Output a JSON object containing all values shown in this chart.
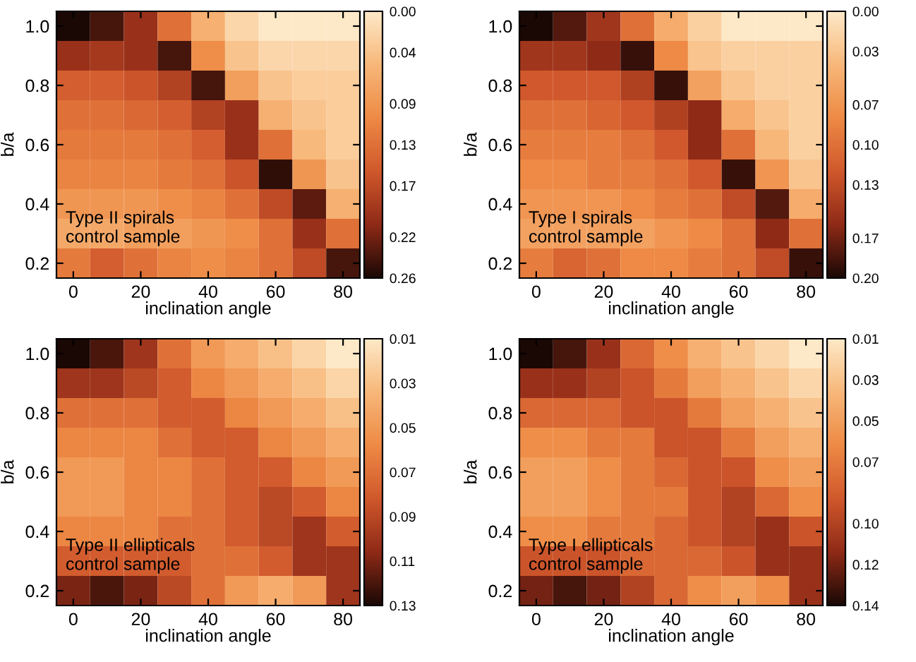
{
  "chart_data": [
    {
      "type": "heatmap",
      "xlabel": "inclination angle",
      "ylabel": "b/a",
      "annotations": [
        "Type II spirals\ncontrol sample"
      ],
      "categories": [
        "0",
        null,
        "20",
        null,
        "40",
        null,
        "60",
        null,
        "80"
      ],
      "y_categories": [
        "1.0",
        null,
        "0.8",
        null,
        "0.6",
        null,
        "0.4",
        null,
        "0.2"
      ],
      "clim": [
        0.0,
        0.26
      ],
      "cticks": [
        {
          "value": 0.0,
          "label": "0.00"
        },
        0.04,
        0.09,
        0.13,
        0.17,
        0.22,
        0.26
      ],
      "cells": [
        [
          0.26,
          0.24,
          0.2,
          0.13,
          0.06,
          0.02,
          0.0,
          0.0,
          0.0
        ],
        [
          0.2,
          0.19,
          0.2,
          0.24,
          0.1,
          0.04,
          0.02,
          0.02,
          0.02
        ],
        [
          0.15,
          0.15,
          0.16,
          0.18,
          0.24,
          0.08,
          0.04,
          0.03,
          0.03
        ],
        [
          0.13,
          0.13,
          0.14,
          0.15,
          0.18,
          0.2,
          0.06,
          0.04,
          0.03
        ],
        [
          0.12,
          0.12,
          0.12,
          0.13,
          0.15,
          0.2,
          0.13,
          0.05,
          0.03
        ],
        [
          0.11,
          0.11,
          0.11,
          0.12,
          0.13,
          0.16,
          0.25,
          0.09,
          0.04
        ],
        [
          0.09,
          0.09,
          0.09,
          0.1,
          0.11,
          0.13,
          0.17,
          0.23,
          0.06
        ],
        [
          0.07,
          0.07,
          0.08,
          0.08,
          0.09,
          0.1,
          0.13,
          0.2,
          0.13
        ],
        [
          0.12,
          0.15,
          0.13,
          0.11,
          0.1,
          0.11,
          0.13,
          0.17,
          0.24
        ]
      ]
    },
    {
      "type": "heatmap",
      "xlabel": "inclination angle",
      "ylabel": "b/a",
      "annotations": [
        "Type I spirals\ncontrol sample"
      ],
      "categories": [
        "0",
        null,
        "20",
        null,
        "40",
        null,
        "60",
        null,
        "80"
      ],
      "y_categories": [
        "1.0",
        null,
        "0.8",
        null,
        "0.6",
        null,
        "0.4",
        null,
        "0.2"
      ],
      "clim": [
        0.0,
        0.2
      ],
      "cticks": [
        {
          "value": 0.0,
          "label": "0.00"
        },
        0.03,
        0.07,
        {
          "value": 0.1,
          "label": "0.10"
        },
        0.13,
        0.17,
        {
          "value": 0.2,
          "label": "0.20"
        }
      ],
      "cells": [
        [
          0.2,
          0.18,
          0.15,
          0.1,
          0.05,
          0.02,
          0.0,
          0.0,
          0.0
        ],
        [
          0.15,
          0.15,
          0.16,
          0.19,
          0.08,
          0.03,
          0.02,
          0.02,
          0.02
        ],
        [
          0.12,
          0.12,
          0.12,
          0.14,
          0.19,
          0.06,
          0.03,
          0.02,
          0.02
        ],
        [
          0.1,
          0.1,
          0.11,
          0.12,
          0.14,
          0.16,
          0.05,
          0.03,
          0.02
        ],
        [
          0.09,
          0.09,
          0.09,
          0.1,
          0.12,
          0.16,
          0.1,
          0.04,
          0.02
        ],
        [
          0.08,
          0.08,
          0.09,
          0.09,
          0.1,
          0.12,
          0.19,
          0.07,
          0.03
        ],
        [
          0.07,
          0.07,
          0.07,
          0.08,
          0.09,
          0.1,
          0.13,
          0.18,
          0.05
        ],
        [
          0.06,
          0.06,
          0.06,
          0.06,
          0.07,
          0.08,
          0.1,
          0.16,
          0.1
        ],
        [
          0.09,
          0.11,
          0.1,
          0.08,
          0.08,
          0.09,
          0.1,
          0.13,
          0.19
        ]
      ]
    },
    {
      "type": "heatmap",
      "xlabel": "inclination angle",
      "ylabel": "b/a",
      "annotations": [
        "Type II ellipticals\ncontrol sample"
      ],
      "categories": [
        "0",
        null,
        "20",
        null,
        "40",
        null,
        "60",
        null,
        "80"
      ],
      "y_categories": [
        "1.0",
        null,
        "0.8",
        null,
        "0.6",
        null,
        "0.4",
        null,
        "0.2"
      ],
      "clim": [
        0.01,
        0.13
      ],
      "cticks": [
        0.01,
        0.03,
        0.05,
        0.07,
        0.09,
        0.11,
        0.13
      ],
      "cells": [
        [
          0.13,
          0.12,
          0.1,
          0.07,
          0.05,
          0.04,
          0.03,
          0.02,
          0.01
        ],
        [
          0.1,
          0.1,
          0.09,
          0.08,
          0.06,
          0.05,
          0.04,
          0.03,
          0.02
        ],
        [
          0.07,
          0.07,
          0.07,
          0.08,
          0.08,
          0.06,
          0.05,
          0.04,
          0.03
        ],
        [
          0.06,
          0.06,
          0.06,
          0.07,
          0.08,
          0.08,
          0.06,
          0.05,
          0.04
        ],
        [
          0.05,
          0.05,
          0.06,
          0.06,
          0.07,
          0.08,
          0.08,
          0.06,
          0.05
        ],
        [
          0.05,
          0.05,
          0.06,
          0.06,
          0.07,
          0.08,
          0.09,
          0.08,
          0.06
        ],
        [
          0.06,
          0.06,
          0.06,
          0.07,
          0.07,
          0.08,
          0.09,
          0.1,
          0.08
        ],
        [
          0.08,
          0.08,
          0.08,
          0.08,
          0.07,
          0.07,
          0.08,
          0.1,
          0.1
        ],
        [
          0.11,
          0.12,
          0.11,
          0.09,
          0.07,
          0.05,
          0.04,
          0.05,
          0.1
        ]
      ]
    },
    {
      "type": "heatmap",
      "xlabel": "inclination angle",
      "ylabel": "b/a",
      "annotations": [
        "Type I ellipticals\ncontrol sample"
      ],
      "categories": [
        "0",
        null,
        "20",
        null,
        "40",
        null,
        "60",
        null,
        "80"
      ],
      "y_categories": [
        "1.0",
        null,
        "0.8",
        null,
        "0.6",
        null,
        "0.4",
        null,
        "0.2"
      ],
      "clim": [
        0.01,
        0.14
      ],
      "cticks": [
        0.01,
        0.03,
        0.05,
        0.07,
        {
          "value": 0.1,
          "label": "0.10"
        },
        0.12,
        0.14
      ],
      "cells": [
        [
          0.14,
          0.13,
          0.11,
          0.08,
          0.06,
          0.04,
          0.03,
          0.02,
          0.01
        ],
        [
          0.11,
          0.11,
          0.1,
          0.09,
          0.07,
          0.05,
          0.04,
          0.03,
          0.02
        ],
        [
          0.08,
          0.08,
          0.08,
          0.09,
          0.09,
          0.07,
          0.05,
          0.04,
          0.03
        ],
        [
          0.06,
          0.06,
          0.07,
          0.07,
          0.09,
          0.09,
          0.07,
          0.05,
          0.04
        ],
        [
          0.05,
          0.05,
          0.06,
          0.07,
          0.08,
          0.09,
          0.09,
          0.06,
          0.05
        ],
        [
          0.05,
          0.05,
          0.06,
          0.07,
          0.07,
          0.09,
          0.1,
          0.08,
          0.06
        ],
        [
          0.06,
          0.06,
          0.07,
          0.07,
          0.08,
          0.09,
          0.1,
          0.11,
          0.09
        ],
        [
          0.09,
          0.09,
          0.09,
          0.08,
          0.08,
          0.08,
          0.09,
          0.11,
          0.11
        ],
        [
          0.12,
          0.13,
          0.12,
          0.1,
          0.08,
          0.06,
          0.05,
          0.06,
          0.11
        ]
      ]
    }
  ]
}
